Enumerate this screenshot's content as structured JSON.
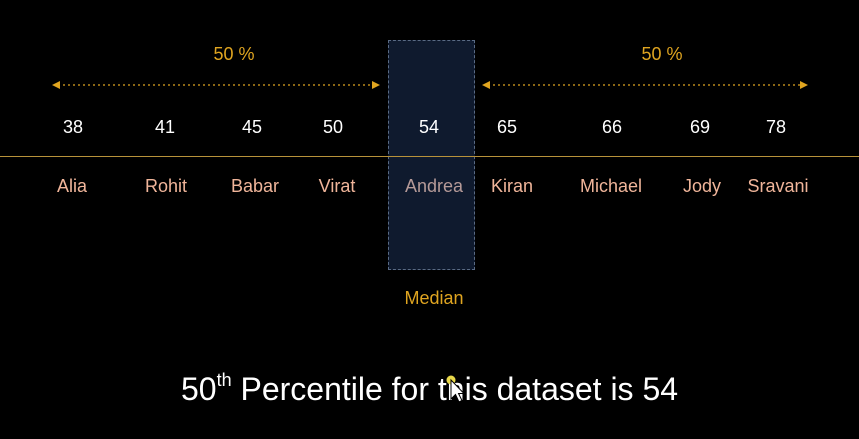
{
  "left_label": "50 %",
  "right_label": "50 %",
  "people": [
    {
      "score": "38",
      "name": "Alia"
    },
    {
      "score": "41",
      "name": "Rohit"
    },
    {
      "score": "45",
      "name": "Babar"
    },
    {
      "score": "50",
      "name": "Virat"
    },
    {
      "score": "54",
      "name": "Andrea"
    },
    {
      "score": "65",
      "name": "Kiran"
    },
    {
      "score": "66",
      "name": "Michael"
    },
    {
      "score": "69",
      "name": "Jody"
    },
    {
      "score": "78",
      "name": "Sravani"
    }
  ],
  "median_label": "Median",
  "caption": {
    "prefix": "50",
    "superscript": "th",
    "text": " Percentile for this dataset is 54"
  },
  "colors": {
    "accent": "#e0a520",
    "name_text": "#f0b59a",
    "median_box": "#0f1a2e",
    "background": "#000000"
  }
}
